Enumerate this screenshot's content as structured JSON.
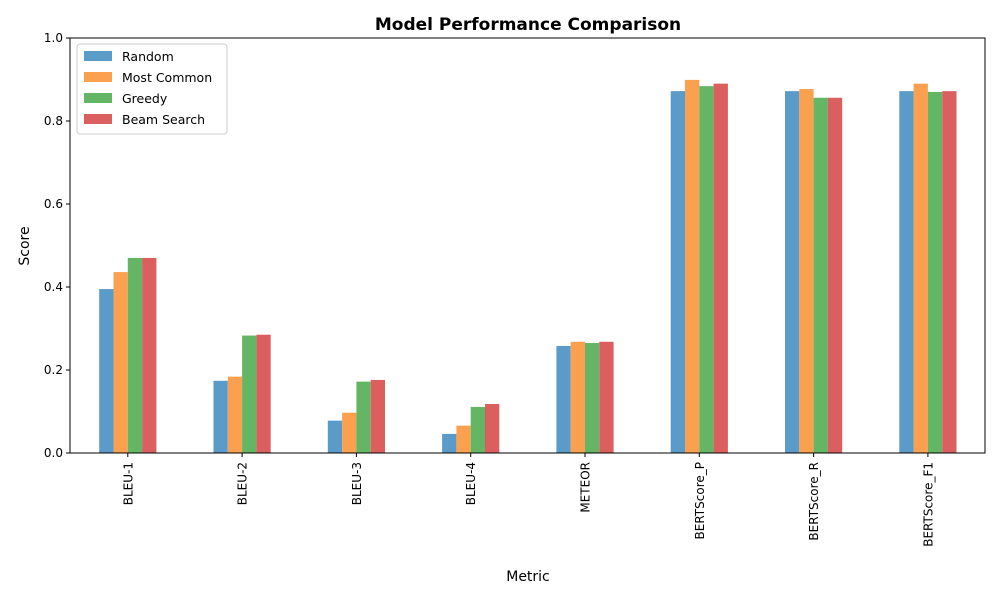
{
  "chart_data": {
    "type": "bar",
    "title": "Model Performance Comparison",
    "xlabel": "Metric",
    "ylabel": "Score",
    "ylim": [
      0,
      1
    ],
    "yticks": [
      "0.0",
      "0.2",
      "0.4",
      "0.6",
      "0.8",
      "1.0"
    ],
    "categories": [
      "BLEU-1",
      "BLEU-2",
      "BLEU-3",
      "BLEU-4",
      "METEOR",
      "BERTScore_P",
      "BERTScore_R",
      "BERTScore_F1"
    ],
    "series": [
      {
        "name": "Random",
        "color": "#5b9bc9",
        "values": [
          0.395,
          0.174,
          0.078,
          0.046,
          0.258,
          0.872,
          0.872,
          0.872
        ]
      },
      {
        "name": "Most Common",
        "color": "#fba04f",
        "values": [
          0.436,
          0.184,
          0.097,
          0.066,
          0.268,
          0.899,
          0.877,
          0.89
        ]
      },
      {
        "name": "Greedy",
        "color": "#64b664",
        "values": [
          0.47,
          0.283,
          0.172,
          0.111,
          0.265,
          0.884,
          0.856,
          0.87
        ]
      },
      {
        "name": "Beam Search",
        "color": "#dc5f5f",
        "values": [
          0.47,
          0.285,
          0.176,
          0.118,
          0.268,
          0.89,
          0.856,
          0.872
        ]
      }
    ],
    "legend_position": "top-left",
    "grid": false
  }
}
